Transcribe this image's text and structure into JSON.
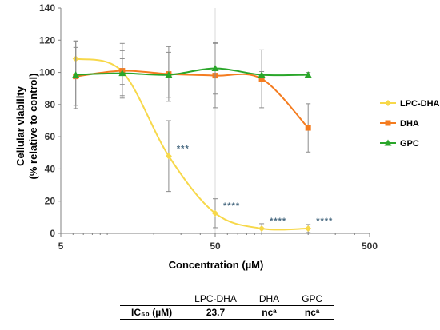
{
  "chart_data": {
    "type": "line",
    "xlabel": "Concentration (µM)",
    "ylabel_line1": "Cellular viability",
    "ylabel_line2": "(% relative to control)",
    "xscale": "log",
    "xlim": [
      5,
      500
    ],
    "ylim": [
      0,
      140
    ],
    "x_ticks": [
      5,
      50,
      500
    ],
    "y_ticks": [
      0,
      20,
      40,
      60,
      80,
      100,
      120,
      140
    ],
    "legend_position": "right",
    "series": [
      {
        "name": "LPC-DHA",
        "color": "#f7d84a",
        "marker": "diamond",
        "x": [
          6.25,
          12.5,
          25,
          50,
          100,
          200
        ],
        "y": [
          108.5,
          100.5,
          48,
          12.5,
          3,
          3
        ],
        "err": [
          11,
          8,
          22,
          9,
          3,
          2.5
        ]
      },
      {
        "name": "DHA",
        "color": "#f47c20",
        "marker": "square",
        "x": [
          6.25,
          12.5,
          25,
          50,
          100,
          200
        ],
        "y": [
          97.5,
          101,
          99,
          98,
          96,
          65.5
        ],
        "err": [
          18,
          17,
          17,
          20,
          18,
          15
        ]
      },
      {
        "name": "GPC",
        "color": "#2aa62a",
        "marker": "triangle",
        "x": [
          6.25,
          12.5,
          25,
          50,
          100,
          200
        ],
        "y": [
          98.5,
          99.5,
          98.5,
          102.5,
          98.5,
          98.5
        ],
        "err": [
          21,
          14,
          14,
          16,
          2,
          1.5
        ]
      }
    ],
    "annotations": [
      {
        "text": "***",
        "x": 25,
        "y": 48
      },
      {
        "text": "****",
        "x": 50,
        "y": 12.5
      },
      {
        "text": "****",
        "x": 100,
        "y": 3
      },
      {
        "text": "****",
        "x": 200,
        "y": 3
      }
    ]
  },
  "ic50_table": {
    "row_label": "IC₅₀ (µM)",
    "columns": [
      "LPC-DHA",
      "DHA",
      "GPC"
    ],
    "values": [
      "23.7",
      "ncᵃ",
      "ncᵃ"
    ]
  }
}
